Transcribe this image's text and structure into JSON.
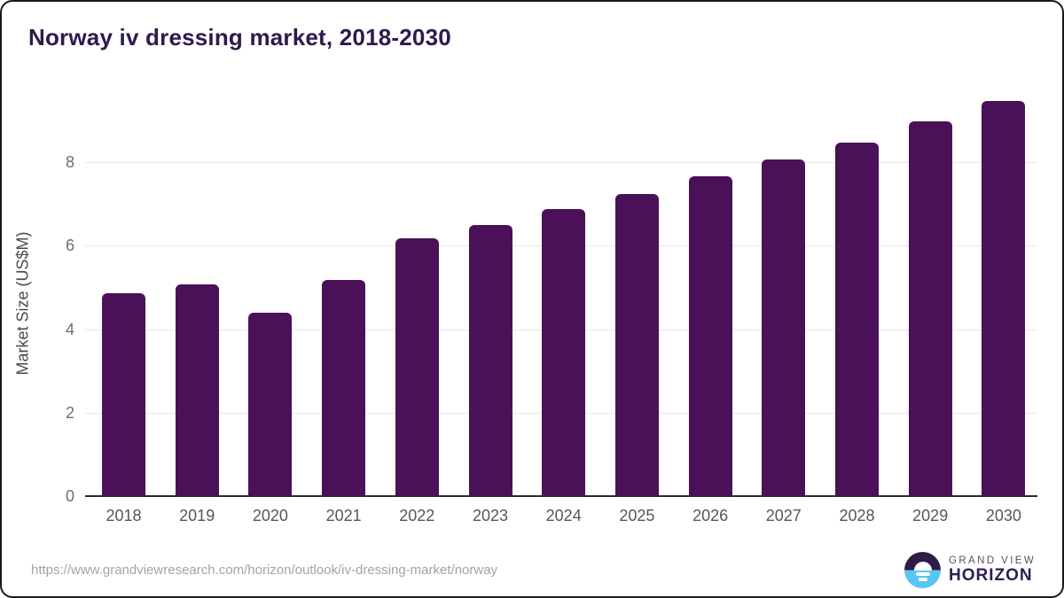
{
  "chart": {
    "title": "Norway iv dressing market, 2018-2030",
    "y_axis_title": "Market Size (US$M)"
  },
  "chart_data": {
    "type": "bar",
    "title": "Norway iv dressing market, 2018-2030",
    "xlabel": "",
    "ylabel": "Market Size (US$M)",
    "categories": [
      "2018",
      "2019",
      "2020",
      "2021",
      "2022",
      "2023",
      "2024",
      "2025",
      "2026",
      "2027",
      "2028",
      "2029",
      "2030"
    ],
    "values": [
      4.87,
      5.08,
      4.39,
      5.17,
      6.17,
      6.49,
      6.87,
      7.25,
      7.66,
      8.07,
      8.48,
      8.98,
      9.47
    ],
    "ylim": [
      0,
      9.83
    ],
    "yticks": [
      0,
      2,
      4,
      6,
      8
    ],
    "grid": "horizontal",
    "legend": "none",
    "bar_color": "#4a1058"
  },
  "colors": {
    "bar": "#4a1058",
    "title_text": "#2e1a4d",
    "gridline": "#e7e7ea",
    "axis_line": "#2b2b2b",
    "logo_blue": "#58c6f2",
    "logo_purple": "#2e1b47"
  },
  "footer": {
    "source_url": "https://www.grandviewresearch.com/horizon/outlook/iv-dressing-market/norway",
    "logo": {
      "line1": "GRAND VIEW",
      "line2": "HORIZON",
      "icon": "sun-horizon-icon"
    }
  }
}
